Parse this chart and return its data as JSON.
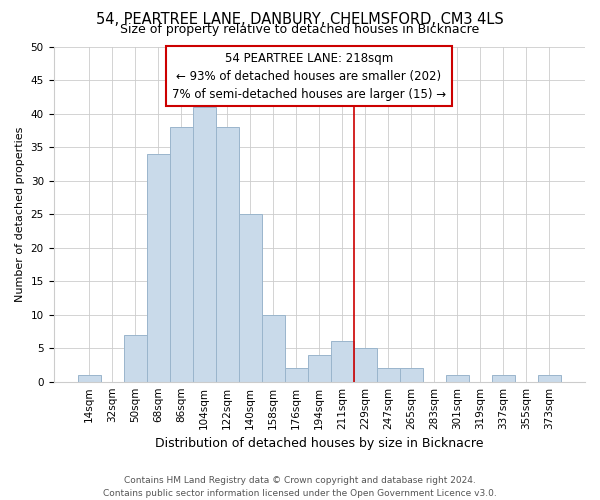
{
  "title": "54, PEARTREE LANE, DANBURY, CHELMSFORD, CM3 4LS",
  "subtitle": "Size of property relative to detached houses in Bicknacre",
  "xlabel": "Distribution of detached houses by size in Bicknacre",
  "ylabel": "Number of detached properties",
  "bin_labels": [
    "14sqm",
    "32sqm",
    "50sqm",
    "68sqm",
    "86sqm",
    "104sqm",
    "122sqm",
    "140sqm",
    "158sqm",
    "176sqm",
    "194sqm",
    "211sqm",
    "229sqm",
    "247sqm",
    "265sqm",
    "283sqm",
    "301sqm",
    "319sqm",
    "337sqm",
    "355sqm",
    "373sqm"
  ],
  "bar_heights": [
    1,
    0,
    7,
    34,
    38,
    41,
    38,
    25,
    10,
    2,
    4,
    6,
    5,
    2,
    2,
    0,
    1,
    0,
    1,
    0,
    1
  ],
  "bar_color": "#c9daea",
  "bar_edge_color": "#9ab5cc",
  "ylim": [
    0,
    50
  ],
  "yticks": [
    0,
    5,
    10,
    15,
    20,
    25,
    30,
    35,
    40,
    45,
    50
  ],
  "vline_x": 11.5,
  "vline_color": "#cc0000",
  "annotation_title": "54 PEARTREE LANE: 218sqm",
  "annotation_line1": "← 93% of detached houses are smaller (202)",
  "annotation_line2": "7% of semi-detached houses are larger (15) →",
  "footer_line1": "Contains HM Land Registry data © Crown copyright and database right 2024.",
  "footer_line2": "Contains public sector information licensed under the Open Government Licence v3.0.",
  "background_color": "#ffffff",
  "grid_color": "#cccccc",
  "title_fontsize": 10.5,
  "subtitle_fontsize": 9,
  "xlabel_fontsize": 9,
  "ylabel_fontsize": 8,
  "tick_fontsize": 7.5,
  "annotation_fontsize": 8.5,
  "footer_fontsize": 6.5
}
